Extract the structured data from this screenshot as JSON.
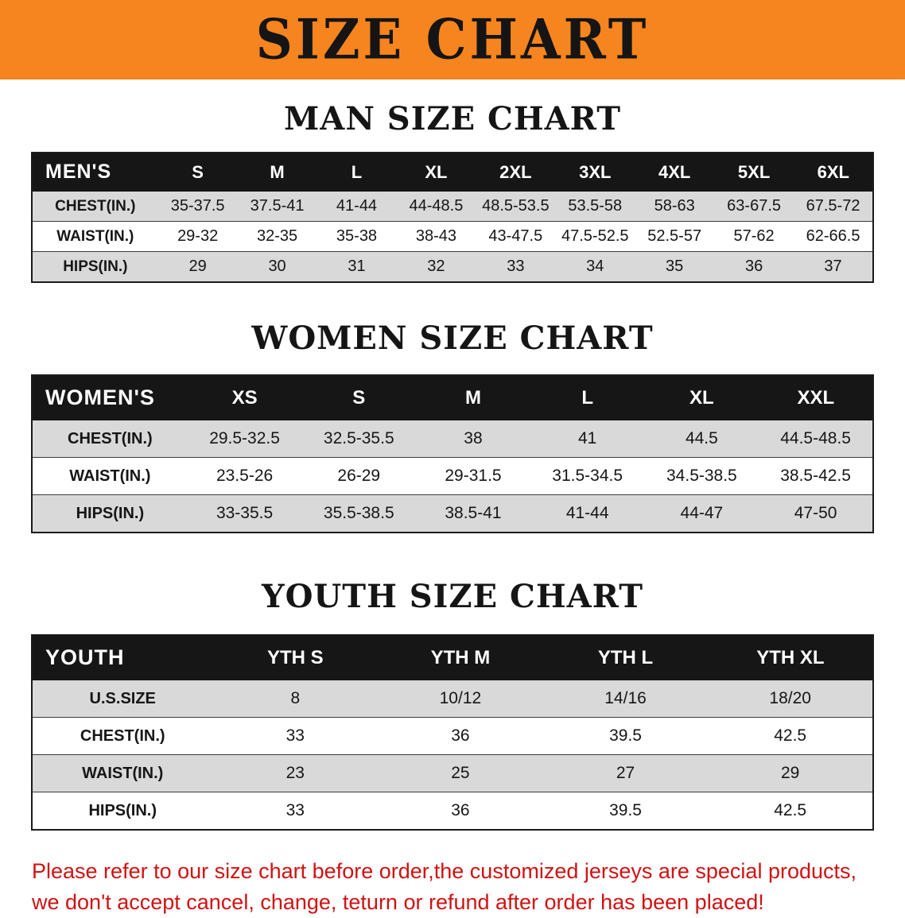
{
  "banner": {
    "title": "SIZE CHART",
    "bg_color": "#f6851f",
    "text_color": "#151515"
  },
  "sections": [
    {
      "id": "men",
      "title": "MAN SIZE CHART",
      "header": [
        "MEN'S",
        "S",
        "M",
        "L",
        "XL",
        "2XL",
        "3XL",
        "4XL",
        "5XL",
        "6XL"
      ],
      "rows": [
        [
          "CHEST(IN.)",
          "35-37.5",
          "37.5-41",
          "41-44",
          "44-48.5",
          "48.5-53.5",
          "53.5-58",
          "58-63",
          "63-67.5",
          "67.5-72"
        ],
        [
          "WAIST(IN.)",
          "29-32",
          "32-35",
          "35-38",
          "38-43",
          "43-47.5",
          "47.5-52.5",
          "52.5-57",
          "57-62",
          "62-66.5"
        ],
        [
          "HIPS(IN.)",
          "29",
          "30",
          "31",
          "32",
          "33",
          "34",
          "35",
          "36",
          "37"
        ]
      ],
      "shading": [
        "gray",
        "white",
        "gray"
      ]
    },
    {
      "id": "women",
      "title": "WOMEN SIZE CHART",
      "header": [
        "WOMEN'S",
        "XS",
        "S",
        "M",
        "L",
        "XL",
        "XXL"
      ],
      "rows": [
        [
          "CHEST(IN.)",
          "29.5-32.5",
          "32.5-35.5",
          "38",
          "41",
          "44.5",
          "44.5-48.5"
        ],
        [
          "WAIST(IN.)",
          "23.5-26",
          "26-29",
          "29-31.5",
          "31.5-34.5",
          "34.5-38.5",
          "38.5-42.5"
        ],
        [
          "HIPS(IN.)",
          "33-35.5",
          "35.5-38.5",
          "38.5-41",
          "41-44",
          "44-47",
          "47-50"
        ]
      ],
      "shading": [
        "gray",
        "white",
        "gray"
      ]
    },
    {
      "id": "youth",
      "title": "YOUTH SIZE CHART",
      "header": [
        "YOUTH",
        "YTH S",
        "YTH M",
        "YTH L",
        "YTH XL"
      ],
      "rows": [
        [
          "U.S.SIZE",
          "8",
          "10/12",
          "14/16",
          "18/20"
        ],
        [
          "CHEST(IN.)",
          "33",
          "36",
          "39.5",
          "42.5"
        ],
        [
          "WAIST(IN.)",
          "23",
          "25",
          "27",
          "29"
        ],
        [
          "HIPS(IN.)",
          "33",
          "36",
          "39.5",
          "42.5"
        ]
      ],
      "shading": [
        "gray",
        "white",
        "gray",
        "white"
      ]
    }
  ],
  "note": {
    "color": "#d01212",
    "lines": [
      "Please refer to our size chart before order,the customized jerseys are special products,",
      "we don't accept cancel, change, teturn or refund after order has been placed!"
    ]
  }
}
